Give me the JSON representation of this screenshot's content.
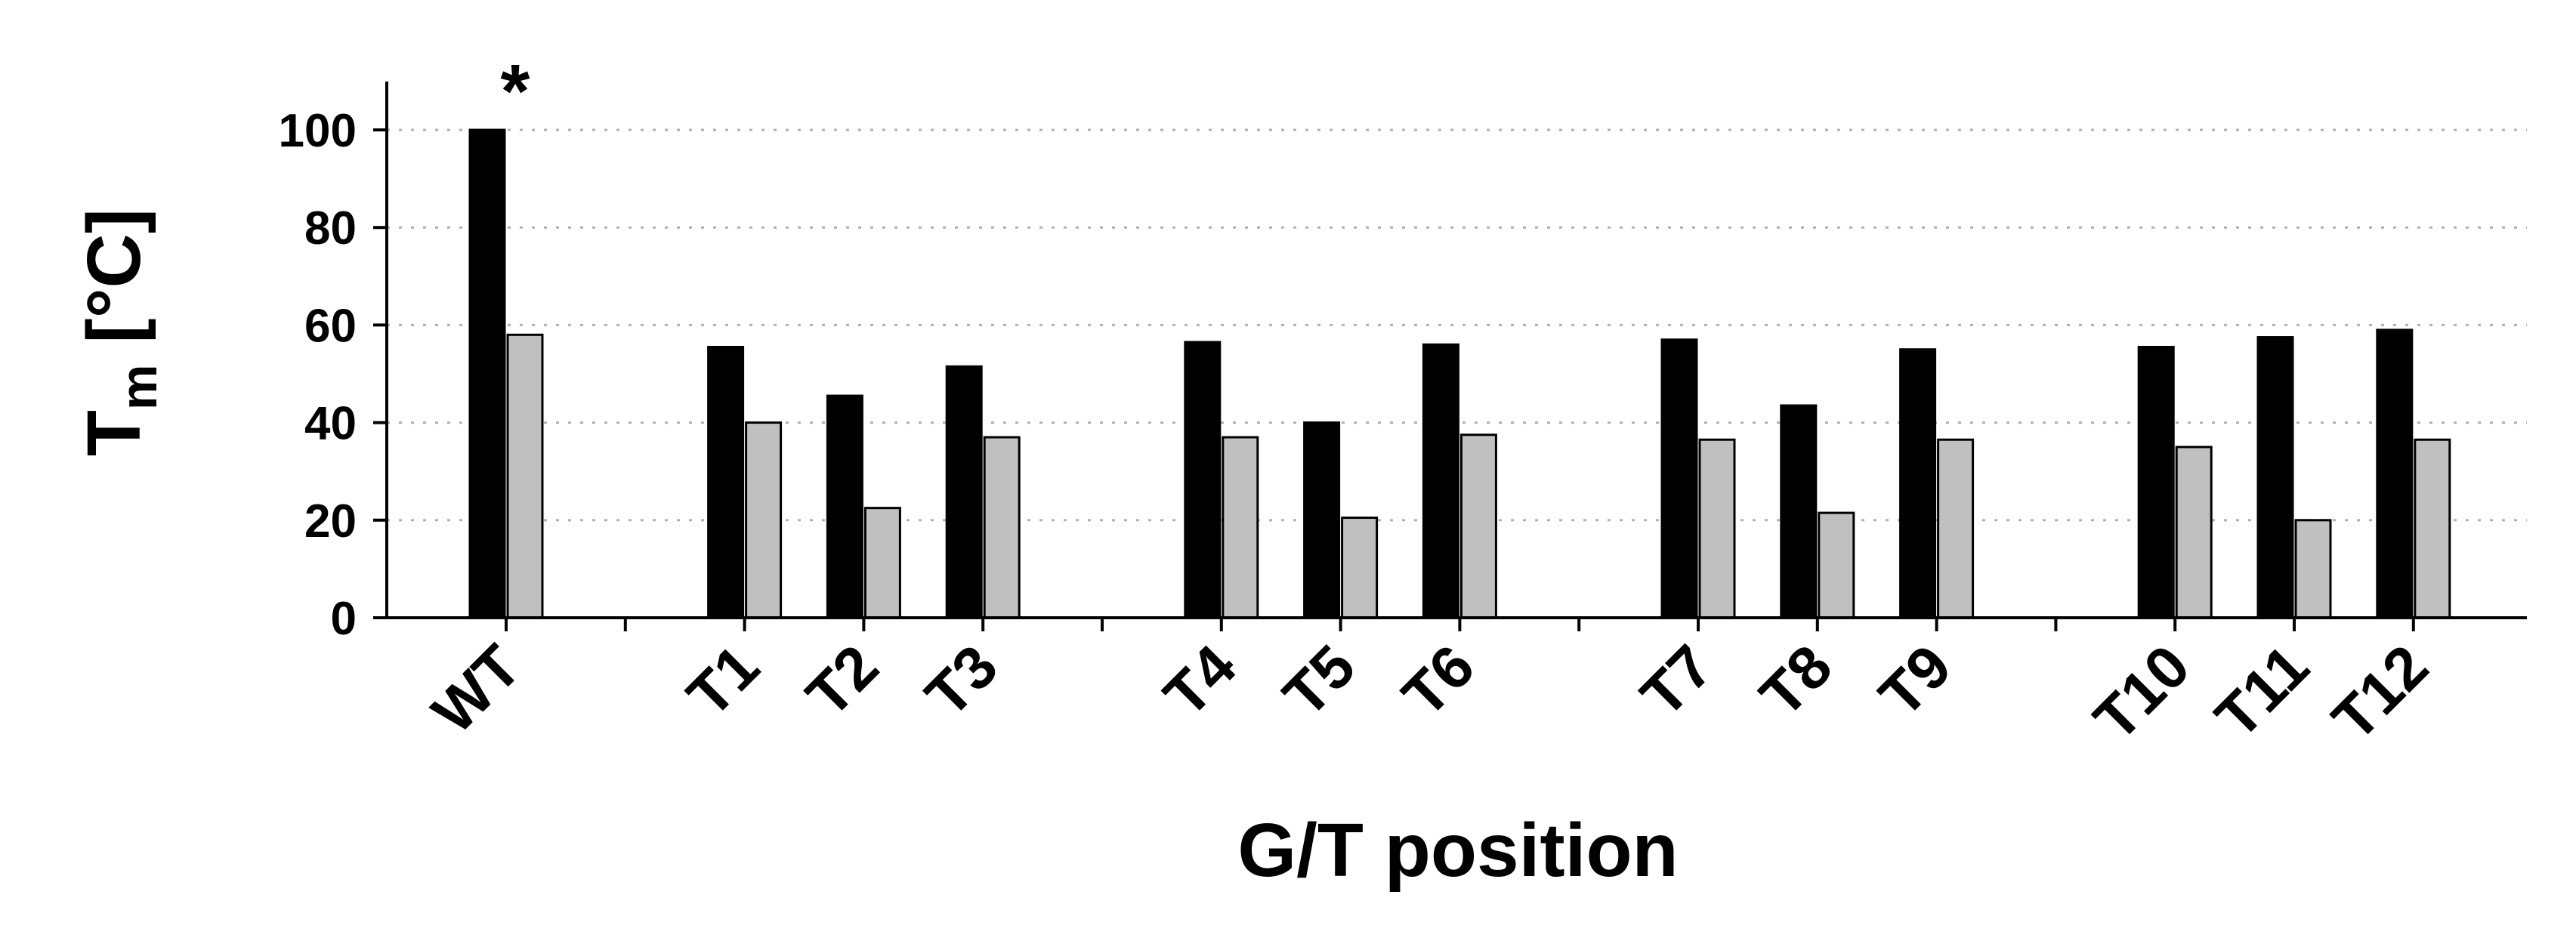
{
  "chart_data": {
    "type": "bar",
    "categories": [
      "WT",
      "T1",
      "T2",
      "T3",
      "T4",
      "T5",
      "T6",
      "T7",
      "T8",
      "T9",
      "T10",
      "T11",
      "T12"
    ],
    "series": [
      {
        "values": [
          100,
          55.5,
          45.5,
          51.5,
          56.5,
          40,
          56,
          57,
          43.5,
          55,
          55.5,
          57.5,
          59
        ],
        "color": "#000000"
      },
      {
        "values": [
          58,
          40,
          22.5,
          37,
          37,
          20.5,
          37.5,
          36.5,
          21.5,
          36.5,
          35,
          20,
          36.5
        ],
        "color": "#c0c0c0"
      }
    ],
    "title": "",
    "xlabel": "G/T position",
    "ylabel_main": "T",
    "ylabel_sub": "m",
    "ylabel_unit": " [°C]",
    "ylim": [
      0,
      110
    ],
    "yticks": [
      0,
      20,
      40,
      60,
      80,
      100
    ],
    "grid": true,
    "annotation": {
      "category": "WT",
      "text": "*"
    }
  }
}
